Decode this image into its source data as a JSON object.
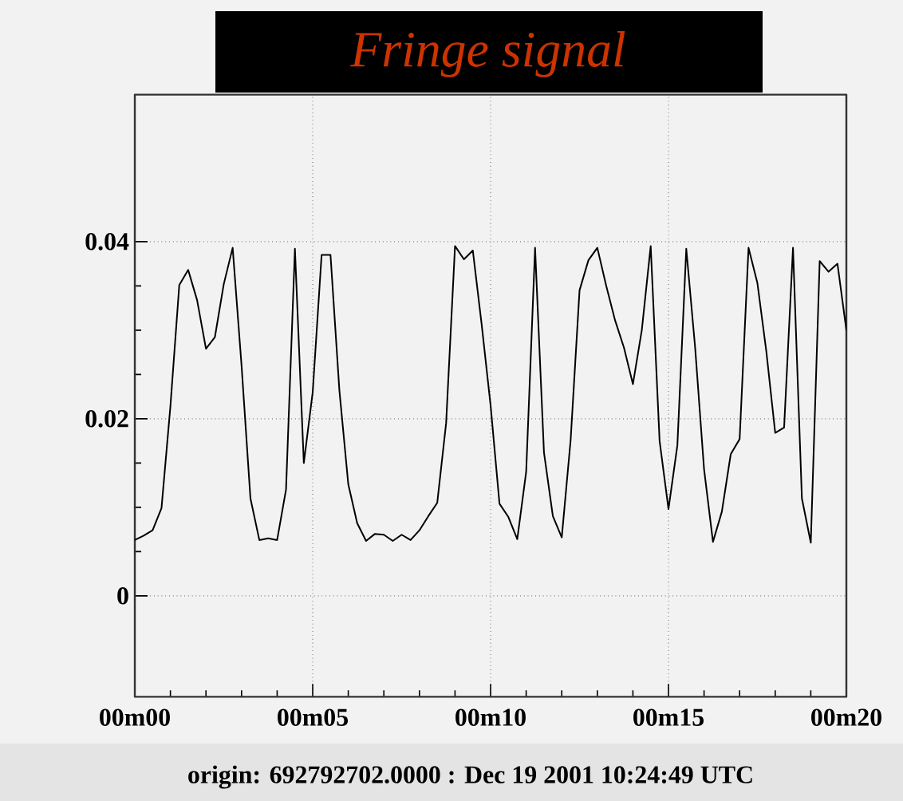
{
  "chart_data": {
    "type": "line",
    "title": "Fringe signal",
    "categories": [
      "00m00",
      null,
      null,
      null,
      null,
      null,
      null,
      null,
      null,
      null,
      null,
      null,
      null,
      null,
      null,
      null,
      null,
      null,
      null,
      null,
      "00m05",
      null,
      null,
      null,
      null,
      null,
      null,
      null,
      null,
      null,
      null,
      null,
      null,
      null,
      null,
      null,
      null,
      null,
      null,
      null,
      "00m10",
      null,
      null,
      null,
      null,
      null,
      null,
      null,
      null,
      null,
      null,
      null,
      null,
      null,
      null,
      null,
      null,
      null,
      null,
      null,
      "00m15",
      null,
      null,
      null,
      null,
      null,
      null,
      null,
      null,
      null,
      null,
      null,
      null,
      null,
      null,
      null,
      null,
      null,
      null,
      null,
      "00m20"
    ],
    "values": [
      0.0063,
      0.0068,
      0.0074,
      0.0099,
      0.0214,
      0.0351,
      0.0368,
      0.0334,
      0.0279,
      0.0292,
      0.0352,
      0.0393,
      0.026,
      0.011,
      0.0063,
      0.0065,
      0.0063,
      0.012,
      0.0392,
      0.015,
      0.023,
      0.0385,
      0.0385,
      0.0232,
      0.0126,
      0.0082,
      0.0062,
      0.007,
      0.0069,
      0.0062,
      0.0069,
      0.0063,
      0.0074,
      0.009,
      0.0105,
      0.0195,
      0.0395,
      0.038,
      0.039,
      0.0306,
      0.0215,
      0.0104,
      0.0089,
      0.0064,
      0.014,
      0.0393,
      0.0162,
      0.009,
      0.0066,
      0.0176,
      0.0345,
      0.0379,
      0.0393,
      0.035,
      0.0311,
      0.028,
      0.0239,
      0.03,
      0.0395,
      0.0175,
      0.0098,
      0.017,
      0.0392,
      0.028,
      0.0143,
      0.0061,
      0.0095,
      0.016,
      0.0177,
      0.0393,
      0.0353,
      0.0276,
      0.0184,
      0.019,
      0.0393,
      0.011,
      0.006,
      0.0378,
      0.0366,
      0.0375,
      0.03
    ],
    "color": "#000000",
    "ylim": [
      -0.0114,
      0.0566
    ],
    "yticks": [
      0,
      0.02,
      0.04
    ],
    "grid": true,
    "annotations": [
      "origin: 692792702.0000 : Dec 19 2001 10:24:49 UTC"
    ]
  }
}
